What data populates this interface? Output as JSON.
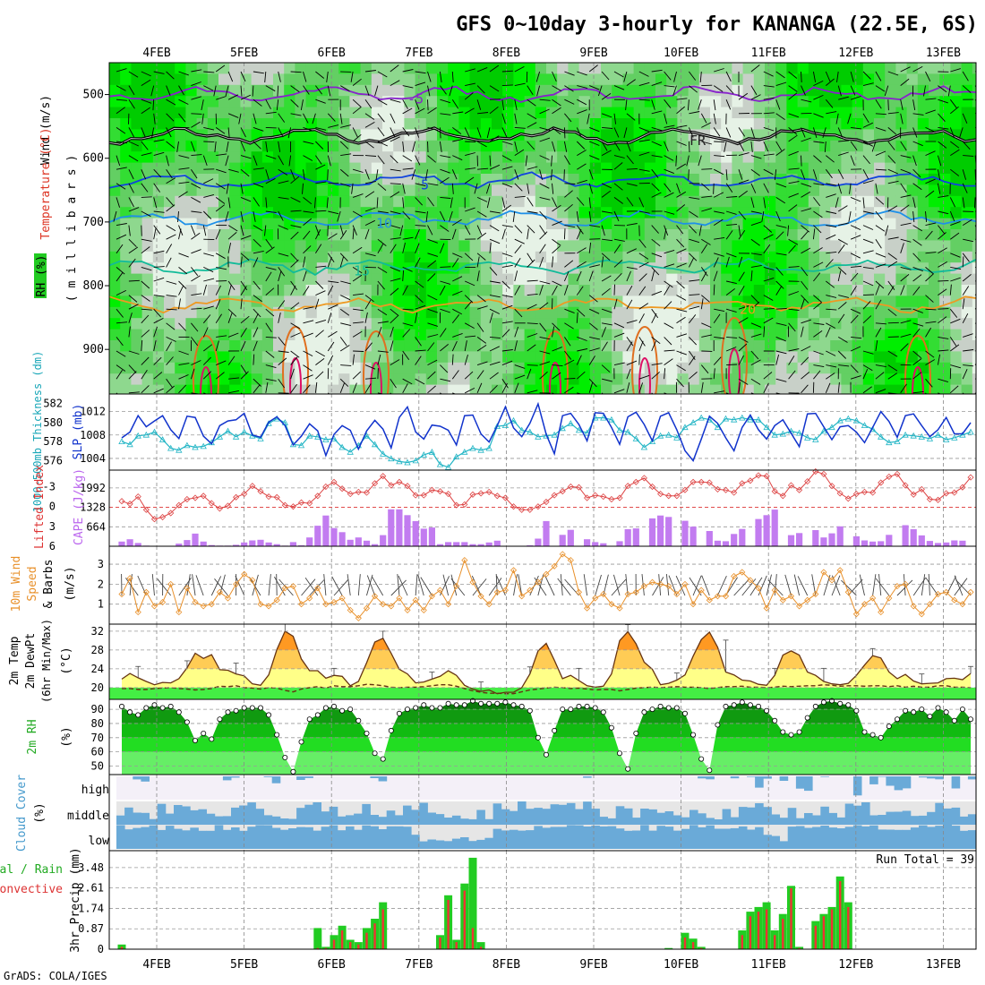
{
  "title": "GFS 0~10day 3-hourly for KANANGA (22.5E, 6S)",
  "footer": "GrADS: COLA/IGES",
  "dates": [
    "4FEB",
    "5FEB",
    "6FEB",
    "7FEB",
    "8FEB",
    "9FEB",
    "10FEB",
    "11FEB",
    "12FEB",
    "13FEB"
  ],
  "labels": {
    "upper_wind": "Wind (m/s)",
    "upper_temp": "Temperature (°C)",
    "upper_rh": "RH (%)",
    "upper_press": "( m i l l i b a r s )",
    "thick": "1000-500mb Thickness (dm)",
    "slp": "SLP (mb)",
    "li": "Lifted Index",
    "cape": "CAPE (J/kg)",
    "wind10_a": "10m Wind",
    "wind10_b": "Speed",
    "wind10_c": "& Barbs",
    "wind10_d": "(m/s)",
    "t2_a": "2m Temp",
    "t2_b": "2m DewPt",
    "t2_c": "(6hr Min/Max)",
    "t2_d": "(°C)",
    "rh2_a": "2m RH",
    "rh2_b": "(%)",
    "cloud_a": "Cloud Cover",
    "cloud_b": "(%)",
    "cloud_high": "high",
    "cloud_mid": "middle",
    "cloud_low": "low",
    "precip_a": "Total / Rain",
    "precip_b": "Convective",
    "precip_c": "3hr Precip (mm)",
    "run_total": "Run Total = 39"
  },
  "chart_data": [
    {
      "type": "heatmap",
      "panel": "upper-air cross-section",
      "y_ticks": [
        500,
        600,
        700,
        800,
        900
      ],
      "ylim": [
        450,
        970
      ],
      "isotherms": [
        {
          "label": "-5",
          "p": 500
        },
        {
          "label": "FR",
          "p": 565
        },
        {
          "label": "5",
          "p": 635
        },
        {
          "label": "10",
          "p": 695
        },
        {
          "label": "15",
          "p": 770
        },
        {
          "label": "20",
          "p": 830
        }
      ]
    },
    {
      "type": "line",
      "panel": "thickness-slp",
      "thickness_ticks": [
        576,
        578,
        580,
        582
      ],
      "slp_ticks": [
        1004,
        1008,
        1012
      ],
      "slp_range": [
        1002,
        1015
      ],
      "thickness_range": [
        575,
        583
      ],
      "slp": [
        1007.5,
        1008.5,
        1011.3,
        1009.4,
        1010.4,
        1011.3,
        1008.9,
        1007.4,
        1011.2,
        1011.0,
        1007.8,
        1006.5,
        1009.6,
        1010.4,
        1010.6,
        1011.7,
        1008.0,
        1007.6,
        1010.2,
        1011.1,
        1009.6,
        1006.3,
        1007.8,
        1009.9,
        1008.7,
        1004.5,
        1008.1,
        1009.6,
        1008.8,
        1005.6,
        1008.7,
        1010.5,
        1009.0,
        1005.8,
        1011.0,
        1012.8,
        1008.5,
        1007.3,
        1009.7,
        1009.5,
        1008.8,
        1006.3,
        1011.3,
        1011.4,
        1008.2,
        1006.8,
        1009.6,
        1012.8,
        1009.2,
        1007.7,
        1010.0,
        1013.3,
        1008.1,
        1004.8,
        1011.3,
        1011.7,
        1009.8,
        1007.0,
        1011.8,
        1011.7,
        1009.3,
        1006.4,
        1011.1,
        1011.9,
        1009.8,
        1007.0,
        1011.2,
        1011.8,
        1008.9,
        1005.3,
        1003.6,
        1007.3,
        1011.2,
        1010.0,
        1007.5,
        1005.3,
        1009.3,
        1011.4,
        1008.9,
        1007.3,
        1009.6,
        1010.6,
        1008.3,
        1006.0,
        1011.6,
        1011.7,
        1009.4,
        1007.2,
        1009.4,
        1009.6,
        1008.5,
        1006.7,
        1009.3,
        1012.0,
        1010.3,
        1007.6,
        1011.3,
        1011.6,
        1009.6,
        1007.7,
        1008.9,
        1011.0,
        1008.2,
        1008.2,
        1010.1
      ],
      "thickness": [
        578.0,
        577.7,
        578.6,
        578.7,
        579.0,
        578.2,
        577.3,
        577.1,
        577.6,
        577.4,
        577.5,
        577.9,
        578.5,
        579.1,
        578.5,
        579.0,
        578.6,
        578.3,
        579.9,
        580.4,
        580.0,
        577.7,
        577.6,
        578.6,
        578.5,
        578.2,
        578.3,
        577.4,
        576.9,
        577.6,
        578.6,
        577.7,
        576.7,
        576.2,
        575.9,
        575.8,
        576.0,
        576.6,
        576.9,
        575.6,
        575.3,
        576.4,
        576.9,
        577.3,
        577.1,
        577.3,
        579.6,
        579.7,
        580.2,
        579.2,
        579.0,
        578.5,
        578.6,
        578.7,
        579.4,
        579.9,
        579.2,
        578.9,
        580.5,
        580.5,
        580.3,
        579.2,
        579.0,
        578.3,
        577.4,
        578.0,
        578.6,
        578.7,
        578.4,
        579.5,
        580.0,
        580.5,
        580.3,
        579.5,
        580.4,
        580.3,
        580.5,
        580.3,
        580.3,
        579.5,
        578.7,
        578.8,
        579.1,
        578.9,
        578.4,
        578.2,
        579.1,
        579.5,
        580.2,
        580.4,
        580.2,
        579.7,
        579.3,
        578.5,
        577.9,
        578.0,
        578.7,
        578.6,
        578.5,
        578.3,
        578.7,
        578.2,
        578.4,
        578.7,
        579.0
      ]
    },
    {
      "type": "bar",
      "panel": "lifted index & cape",
      "li_ticks": [
        -3,
        0,
        3,
        6
      ],
      "cape_ticks": [
        664,
        1328,
        1992
      ],
      "li_range": [
        6,
        -5.5
      ],
      "cape_range": [
        0,
        2600
      ],
      "li": [
        -0.8,
        -0.4,
        -1.5,
        0.5,
        1.9,
        1.6,
        1.0,
        -0.2,
        -1.1,
        -1.3,
        -1.6,
        -0.5,
        0.3,
        -0.1,
        -1.4,
        -1.9,
        -3.1,
        -2.3,
        -1.5,
        -1.4,
        -0.2,
        0.0,
        -0.6,
        -0.5,
        -1.6,
        -3.0,
        -3.7,
        -2.7,
        -1.9,
        -2.2,
        -2.1,
        -3.5,
        -4.6,
        -3.2,
        -3.7,
        -3.1,
        -1.7,
        -1.7,
        -2.5,
        -2.3,
        -1.9,
        -0.2,
        -0.3,
        -1.8,
        -2.0,
        -2.2,
        -1.6,
        -1.3,
        0.0,
        0.5,
        0.5,
        0.0,
        -0.7,
        -1.7,
        -2.3,
        -3.0,
        -2.9,
        -1.3,
        -1.7,
        -1.5,
        -1.1,
        -1.3,
        -3.1,
        -3.7,
        -4.3,
        -3.0,
        -1.9,
        -1.6,
        -1.6,
        -2.5,
        -3.7,
        -3.7,
        -3.6,
        -2.6,
        -2.5,
        -2.1,
        -3.5,
        -3.9,
        -4.7,
        -4.6,
        -2.3,
        -1.6,
        -3.2,
        -2.5,
        -3.8,
        -5.3,
        -4.9,
        -3.1,
        -2.0,
        -1.2,
        -1.9,
        -2.2,
        -2.1,
        -3.6,
        -4.5,
        -4.9,
        -3.2,
        -1.8,
        -2.6,
        -1.1,
        -1.0,
        -2.0,
        -2.1,
        -2.9,
        -4.4
      ],
      "cape": [
        160,
        240,
        110,
        20,
        5,
        5,
        10,
        90,
        210,
        430,
        160,
        40,
        20,
        20,
        50,
        130,
        200,
        220,
        130,
        70,
        20,
        140,
        30,
        300,
        700,
        1050,
        620,
        480,
        220,
        300,
        190,
        70,
        380,
        1260,
        1260,
        1060,
        860,
        600,
        640,
        70,
        140,
        140,
        140,
        70,
        70,
        130,
        190,
        0,
        0,
        0,
        30,
        260,
        860,
        0,
        390,
        560,
        0,
        240,
        140,
        100,
        0,
        170,
        580,
        610,
        0,
        950,
        1050,
        1000,
        0,
        870,
        670,
        0,
        520,
        190,
        170,
        420,
        590,
        0,
        930,
        1060,
        1250,
        0,
        380,
        450,
        0,
        550,
        300,
        440,
        680,
        0,
        340,
        200,
        160,
        170,
        390,
        0,
        720,
        580,
        370,
        180,
        110,
        130,
        200,
        190,
        0
      ]
    },
    {
      "type": "line",
      "panel": "10m wind speed",
      "y_ticks": [
        1,
        2,
        3
      ],
      "ylim": [
        0,
        3.9
      ],
      "speed": [
        1.5,
        2.3,
        0.6,
        1.6,
        0.9,
        1.1,
        2.0,
        0.6,
        1.8,
        1.1,
        0.9,
        1.0,
        1.6,
        1.3,
        2.0,
        2.5,
        2.2,
        1.0,
        0.9,
        1.2,
        1.8,
        1.9,
        1.0,
        1.3,
        1.8,
        1.0,
        1.1,
        1.3,
        0.7,
        0.3,
        0.8,
        1.4,
        1.0,
        0.9,
        1.3,
        0.7,
        1.2,
        0.7,
        1.4,
        1.7,
        1.0,
        1.9,
        3.2,
        2.1,
        1.4,
        1.0,
        1.6,
        1.7,
        2.7,
        1.4,
        1.7,
        2.1,
        2.5,
        2.9,
        3.5,
        3.2,
        1.6,
        0.8,
        1.3,
        1.5,
        1.0,
        0.8,
        1.5,
        1.6,
        1.9,
        2.1,
        2.0,
        1.9,
        1.5,
        2.0,
        1.0,
        1.7,
        1.2,
        1.4,
        1.4,
        2.4,
        2.6,
        2.2,
        1.8,
        0.8,
        1.7,
        1.2,
        1.4,
        0.9,
        1.2,
        1.5,
        2.6,
        2.2,
        2.7,
        1.6,
        0.5,
        1.0,
        1.3,
        0.6,
        1.3,
        1.9,
        2.0,
        0.9,
        0.5,
        1.0,
        1.5,
        1.6,
        1.2,
        1.0,
        1.6
      ]
    },
    {
      "type": "area",
      "panel": "2m temperature and dewpoint",
      "y_ticks": [
        20,
        24,
        28,
        32
      ],
      "ylim": [
        17.5,
        33.5
      ],
      "temp": [
        21.8,
        23.0,
        22.1,
        21.3,
        20.6,
        21.1,
        21.0,
        21.9,
        24.2,
        27.3,
        26.2,
        27.0,
        23.8,
        23.7,
        22.9,
        22.5,
        20.8,
        20.5,
        22.7,
        28.1,
        32.0,
        30.9,
        26.1,
        23.6,
        23.6,
        22.0,
        22.6,
        22.4,
        20.4,
        21.3,
        25.3,
        29.7,
        30.5,
        27.3,
        23.9,
        22.9,
        21.0,
        21.2,
        21.8,
        22.4,
        23.6,
        22.6,
        20.5,
        19.7,
        19.2,
        19.5,
        18.7,
        19.0,
        19.0,
        20.0,
        22.9,
        27.8,
        29.4,
        25.8,
        21.9,
        22.6,
        21.5,
        20.4,
        20.1,
        20.3,
        22.9,
        30.0,
        31.9,
        29.3,
        25.4,
        23.9,
        20.6,
        20.9,
        21.6,
        22.7,
        26.7,
        30.2,
        31.8,
        28.6,
        23.3,
        22.7,
        21.6,
        21.4,
        20.7,
        20.5,
        22.6,
        26.9,
        27.8,
        26.9,
        23.3,
        22.6,
        21.3,
        20.8,
        20.6,
        20.9,
        22.6,
        24.8,
        26.8,
        26.3,
        23.3,
        21.9,
        22.8,
        21.4,
        20.8,
        20.9,
        21.0,
        21.9,
        22.0,
        21.7,
        23.0
      ],
      "dewpt": [
        19.8,
        19.8,
        19.6,
        19.6,
        19.8,
        19.9,
        20.0,
        19.8,
        19.7,
        19.5,
        19.6,
        19.8,
        20.3,
        20.2,
        20.4,
        20.0,
        19.9,
        19.7,
        20.0,
        19.9,
        19.4,
        19.1,
        19.7,
        20.0,
        20.2,
        19.9,
        20.4,
        20.2,
        20.2,
        20.4,
        20.7,
        20.6,
        20.4,
        20.1,
        20.0,
        20.1,
        20.1,
        20.2,
        20.4,
        20.6,
        20.6,
        20.3,
        19.8,
        19.3,
        19.0,
        18.8,
        18.8,
        18.7,
        18.7,
        19.1,
        19.5,
        19.7,
        19.9,
        20.1,
        20.0,
        19.8,
        19.9,
        19.7,
        19.5,
        19.6,
        19.6,
        19.3,
        19.6,
        19.9,
        20.0,
        20.1,
        20.0,
        20.1,
        20.2,
        20.1,
        20.1,
        20.0,
        19.8,
        20.0,
        20.2,
        20.2,
        20.3,
        20.1,
        20.1,
        20.0,
        20.1,
        20.3,
        20.2,
        20.3,
        20.4,
        20.4,
        20.6,
        20.5,
        20.3,
        20.4,
        20.4,
        20.3,
        20.4,
        20.4,
        20.2,
        20.4,
        20.1,
        20.3,
        20.1,
        20.1,
        20.4,
        20.4,
        20.1,
        20.1,
        20.0
      ]
    },
    {
      "type": "area",
      "panel": "2m relative humidity",
      "y_ticks": [
        50,
        60,
        70,
        80,
        90
      ],
      "ylim": [
        44,
        97
      ],
      "rh": [
        92,
        88,
        86,
        91,
        93,
        91,
        92,
        88,
        81,
        68,
        73,
        69,
        83,
        88,
        89,
        91,
        91,
        91,
        86,
        72,
        56,
        46,
        67,
        83,
        86,
        91,
        92,
        89,
        90,
        82,
        73,
        59,
        55,
        75,
        87,
        90,
        91,
        93,
        91,
        91,
        94,
        93,
        93,
        96,
        94,
        94,
        94,
        95,
        93,
        92,
        89,
        70,
        58,
        75,
        90,
        90,
        92,
        92,
        91,
        88,
        77,
        59,
        48,
        73,
        88,
        90,
        92,
        91,
        91,
        87,
        72,
        55,
        47,
        79,
        92,
        93,
        95,
        93,
        92,
        89,
        82,
        74,
        72,
        74,
        84,
        92,
        95,
        96,
        94,
        93,
        89,
        74,
        72,
        70,
        78,
        83,
        89,
        88,
        90,
        85,
        91,
        88,
        82,
        90,
        83
      ]
    },
    {
      "type": "area",
      "panel": "cloud cover",
      "rows": [
        "high",
        "middle",
        "low"
      ]
    },
    {
      "type": "bar",
      "panel": "3hr precipitation",
      "y_ticks": [
        0,
        0.87,
        1.74,
        2.61,
        3.48
      ],
      "ylim": [
        0,
        4.2
      ],
      "run_total": 39,
      "total": [
        0.2,
        0,
        0,
        0,
        0,
        0,
        0,
        0,
        0,
        0,
        0,
        0,
        0,
        0,
        0,
        0,
        0,
        0,
        0,
        0,
        0,
        0,
        0,
        0,
        0.9,
        0.1,
        0.6,
        1.0,
        0.4,
        0.3,
        0.9,
        1.3,
        2.0,
        0,
        0,
        0,
        0,
        0,
        0,
        0.6,
        2.3,
        0.4,
        2.8,
        3.9,
        0.3,
        0,
        0,
        0,
        0,
        0,
        0,
        0,
        0,
        0,
        0,
        0,
        0,
        0,
        0,
        0,
        0,
        0,
        0,
        0,
        0,
        0,
        0,
        0.05,
        0,
        0.7,
        0.45,
        0.1,
        0,
        0,
        0,
        0,
        0.8,
        1.6,
        1.8,
        2.0,
        0.8,
        1.5,
        2.7,
        0.1,
        0,
        1.2,
        1.5,
        1.8,
        3.1,
        2.0,
        0,
        0,
        0,
        0,
        0,
        0,
        0,
        0,
        0,
        0,
        0,
        0,
        0,
        0,
        0
      ],
      "convective": [
        0.1,
        0,
        0,
        0,
        0,
        0,
        0,
        0,
        0,
        0,
        0,
        0,
        0,
        0,
        0,
        0,
        0,
        0,
        0,
        0,
        0,
        0,
        0,
        0,
        0.05,
        0.05,
        0.4,
        0.8,
        0.3,
        0.2,
        0.7,
        1.1,
        1.7,
        0,
        0,
        0,
        0,
        0,
        0,
        0.5,
        2.1,
        0.3,
        2.5,
        0.9,
        0.1,
        0,
        0,
        0,
        0,
        0,
        0,
        0,
        0,
        0,
        0,
        0,
        0,
        0,
        0,
        0,
        0,
        0,
        0,
        0,
        0,
        0,
        0,
        0,
        0,
        0.5,
        0.3,
        0.05,
        0,
        0,
        0,
        0,
        0.6,
        1.4,
        1.6,
        1.7,
        0.6,
        1.3,
        2.6,
        0.05,
        0,
        1.0,
        1.4,
        1.7,
        2.9,
        1.8,
        0,
        0,
        0,
        0,
        0,
        0,
        0,
        0,
        0,
        0,
        0,
        0,
        0,
        0,
        0
      ]
    }
  ]
}
